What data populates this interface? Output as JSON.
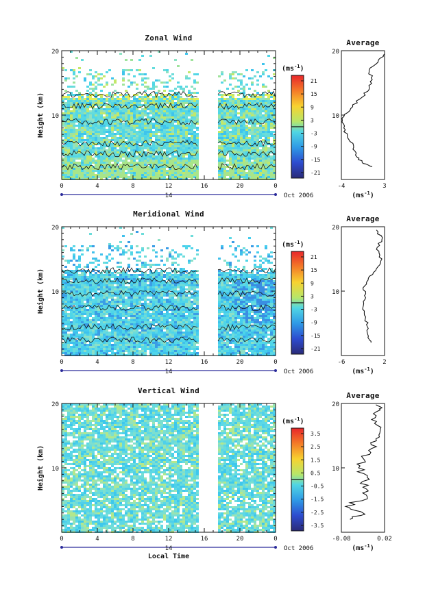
{
  "chart_data": [
    {
      "type": "heatmap",
      "title": "Zonal Wind",
      "ylabel": "Height (km)",
      "y_ticks": [
        "20",
        "10"
      ],
      "x_ticks": [
        "0",
        "4",
        "8",
        "12",
        "16",
        "20",
        "0"
      ],
      "day_label": "14",
      "date_label": "Oct 2006",
      "colorbar": {
        "unit": "(ms",
        "unit_sup": "-1",
        "unit_close": ")",
        "ticks": [
          "21",
          "15",
          "9",
          "3",
          "-3",
          "-9",
          "-15",
          "-21"
        ],
        "range": [
          -21,
          21
        ]
      },
      "profile": {
        "title": "Average",
        "x_ticks": [
          "-4",
          "3"
        ],
        "xlim": [
          -4,
          3
        ],
        "y_ticks": [
          "20",
          "10"
        ],
        "unit": "(ms",
        "unit_sup": "-1",
        "unit_close": ")",
        "z": [
          2.0,
          2.5,
          3.5,
          5.0,
          6.5,
          8.0,
          9.5,
          11.0,
          12.5,
          14.0,
          15.5,
          17.0,
          18.5,
          19.5
        ],
        "values": [
          1.0,
          -0.5,
          -1.5,
          -2.0,
          -3.0,
          -3.6,
          -3.9,
          -2.5,
          -1.0,
          0.5,
          1.0,
          0.5,
          2.0,
          3.0
        ]
      }
    },
    {
      "type": "heatmap",
      "title": "Meridional Wind",
      "ylabel": "Height (km)",
      "y_ticks": [
        "20",
        "10"
      ],
      "x_ticks": [
        "0",
        "4",
        "8",
        "12",
        "16",
        "20",
        "0"
      ],
      "day_label": "14",
      "date_label": "Oct 2006",
      "colorbar": {
        "unit": "(ms",
        "unit_sup": "-1",
        "unit_close": ")",
        "ticks": [
          "21",
          "15",
          "9",
          "3",
          "-3",
          "-9",
          "-15",
          "-21"
        ],
        "range": [
          -21,
          21
        ]
      },
      "profile": {
        "title": "Average",
        "x_ticks": [
          "-6",
          "2"
        ],
        "xlim": [
          -6,
          2
        ],
        "y_ticks": [
          "20",
          "10"
        ],
        "unit": "(ms",
        "unit_sup": "-1",
        "unit_close": ")",
        "z": [
          2.0,
          3.0,
          4.5,
          6.0,
          7.5,
          9.0,
          10.5,
          12.0,
          13.5,
          15.0,
          16.5,
          18.0,
          19.5
        ],
        "values": [
          -0.5,
          -1.0,
          -1.2,
          -1.5,
          -2.0,
          -1.5,
          -2.0,
          -1.0,
          0.5,
          1.5,
          0.5,
          1.5,
          0.5
        ]
      }
    },
    {
      "type": "heatmap",
      "title": "Vertical Wind",
      "ylabel": "Height (km)",
      "xlabel": "Local Time",
      "y_ticks": [
        "20",
        "10"
      ],
      "x_ticks": [
        "0",
        "4",
        "8",
        "12",
        "16",
        "20",
        "0"
      ],
      "day_label": "14",
      "date_label": "Oct 2006",
      "colorbar": {
        "unit": "(ms",
        "unit_sup": "-1",
        "unit_close": ")",
        "ticks": [
          "3.5",
          "2.5",
          "1.5",
          "0.5",
          "-0.5",
          "-1.5",
          "-2.5",
          "-3.5"
        ],
        "range": [
          -3.5,
          3.5
        ]
      },
      "profile": {
        "title": "Average",
        "x_ticks": [
          "-0.08",
          "0.02"
        ],
        "xlim": [
          -0.08,
          0.02
        ],
        "y_ticks": [
          "20",
          "10"
        ],
        "unit": "(ms",
        "unit_sup": "-1",
        "unit_close": ")",
        "z": [
          2.0,
          3.0,
          4.0,
          5.5,
          7.0,
          8.5,
          10.0,
          11.5,
          13.0,
          14.5,
          16.0,
          17.5,
          19.0,
          19.8
        ],
        "values": [
          -0.06,
          -0.03,
          -0.07,
          -0.02,
          -0.03,
          -0.02,
          -0.04,
          -0.03,
          -0.01,
          0.0,
          0.01,
          -0.01,
          0.01,
          0.0
        ]
      }
    }
  ]
}
